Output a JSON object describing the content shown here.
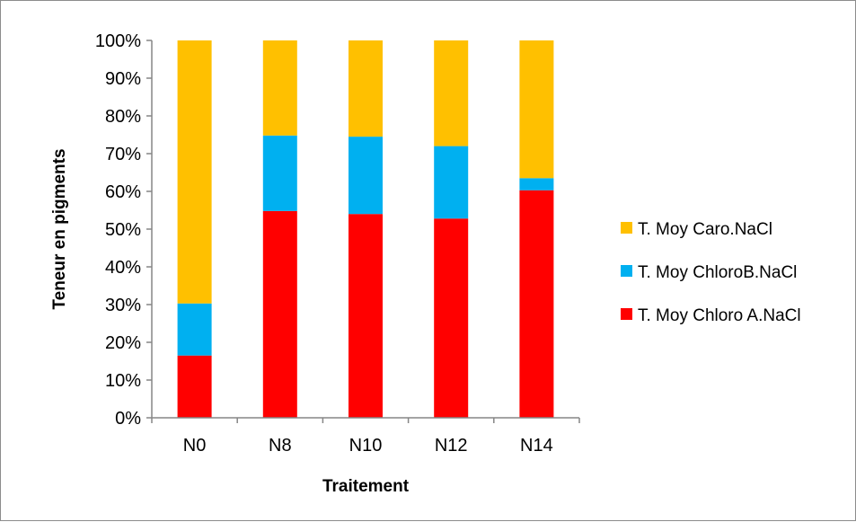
{
  "chart_data": {
    "type": "bar",
    "stacked": true,
    "percent": true,
    "categories": [
      "N0",
      "N8",
      "N10",
      "N12",
      "N14"
    ],
    "series": [
      {
        "name": "T. Moy Chloro A.NaCl",
        "color": "#ff0000",
        "values": [
          16.5,
          54.8,
          54.0,
          52.8,
          60.3
        ]
      },
      {
        "name": "T. Moy ChloroB.NaCl",
        "color": "#00b0f0",
        "values": [
          13.8,
          20.0,
          20.5,
          19.2,
          3.2
        ]
      },
      {
        "name": "T. Moy Caro.NaCl",
        "color": "#ffc000",
        "values": [
          69.7,
          25.2,
          25.5,
          28.0,
          36.5
        ]
      }
    ],
    "y_ticks": [
      "0%",
      "10%",
      "20%",
      "30%",
      "40%",
      "50%",
      "60%",
      "70%",
      "80%",
      "90%",
      "100%"
    ],
    "xlabel": "Traitement",
    "ylabel": "Teneur en pigments",
    "ylim": [
      0,
      100
    ],
    "grid": false,
    "legend_position": "right"
  }
}
